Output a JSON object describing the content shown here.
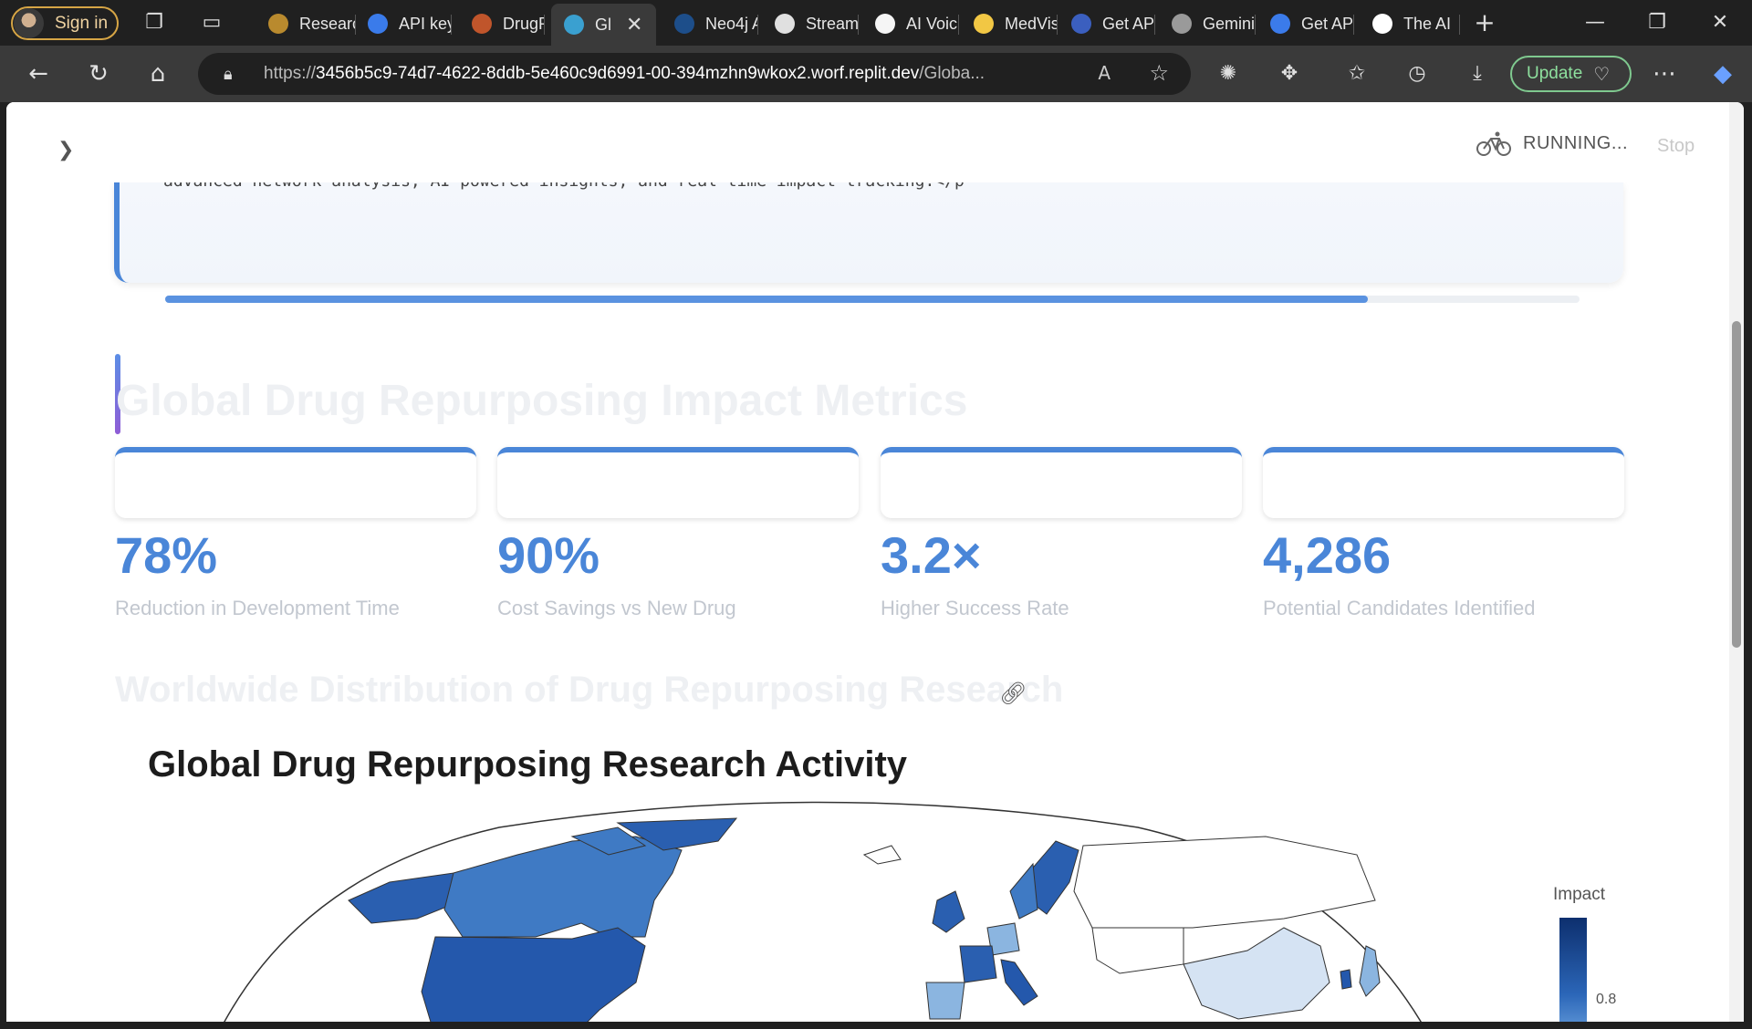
{
  "browser": {
    "signin_label": "Sign in",
    "tabs": [
      {
        "label": "Researc",
        "color": "#b98a2e"
      },
      {
        "label": "API key",
        "color": "#3a7bea"
      },
      {
        "label": "DrugRe",
        "color": "#c0552b"
      },
      {
        "label": "Gl",
        "color": "#3aa0d0",
        "active": true
      },
      {
        "label": "Neo4j A",
        "color": "#1d4e8a"
      },
      {
        "label": "Stream",
        "color": "#e0e0e0"
      },
      {
        "label": "AI Voic",
        "color": "#f5f5f5"
      },
      {
        "label": "MedVis",
        "color": "#f2c744"
      },
      {
        "label": "Get API",
        "color": "#3b5fbf"
      },
      {
        "label": "Gemini",
        "color": "#9a9a9a"
      },
      {
        "label": "Get API",
        "color": "#3b7bea"
      },
      {
        "label": "The AI",
        "color": "#ffffff"
      }
    ],
    "url_prefix": "https://",
    "url_host": "3456b5c9-74d7-4622-8ddb-5e460c9d6991-00-394mzhn9wkox2.worf.replit.dev",
    "url_path": "/Globa...",
    "update_label": "Update"
  },
  "app": {
    "status": "RUNNING...",
    "stop_label": "Stop",
    "hero_code": "advanced network analysis, AI-powered insights, and real-time impact tracking.</p",
    "hero_progress": 0.85,
    "metrics_title": "Global Drug Repurposing Impact Metrics",
    "metrics": [
      {
        "value": "78%",
        "label": "Reduction in Development Time"
      },
      {
        "value": "90%",
        "label": "Cost Savings vs New Drug"
      },
      {
        "value": "3.2×",
        "label": "Higher Success Rate"
      },
      {
        "value": "4,286",
        "label": "Potential Candidates Identified"
      }
    ],
    "distribution_title": "Worldwide Distribution of Drug Repurposing Research",
    "map_title": "Global Drug Repurposing Research Activity",
    "legend_title": "Impact",
    "legend_tick": "0.8"
  }
}
